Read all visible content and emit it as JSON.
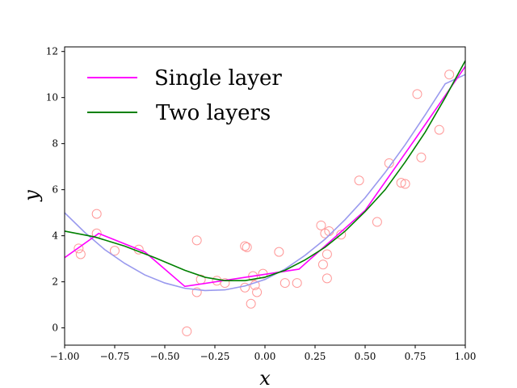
{
  "chart_data": {
    "type": "line",
    "title": "",
    "xlabel": "x",
    "ylabel": "y",
    "xlim": [
      -1.0,
      1.0
    ],
    "ylim": [
      -0.75,
      12.2
    ],
    "x_ticks": [
      -1.0,
      -0.75,
      -0.5,
      -0.25,
      0.0,
      0.25,
      0.5,
      0.75,
      1.0
    ],
    "x_tick_labels": [
      "−1.00",
      "−0.75",
      "−0.50",
      "−0.25",
      "0.00",
      "0.25",
      "0.50",
      "0.75",
      "1.00"
    ],
    "y_ticks": [
      0,
      2,
      4,
      6,
      8,
      10,
      12
    ],
    "y_tick_labels": [
      "0",
      "2",
      "4",
      "6",
      "8",
      "10",
      "12"
    ],
    "grid": false,
    "legend_position": "upper-left",
    "legend": [
      {
        "label": "Single layer",
        "color": "#ff00ff"
      },
      {
        "label": "Two layers",
        "color": "#008000"
      }
    ],
    "scatter": {
      "color": "#ff9999",
      "points": [
        [
          -0.93,
          3.45
        ],
        [
          -0.92,
          3.2
        ],
        [
          -0.84,
          4.1
        ],
        [
          -0.84,
          4.95
        ],
        [
          -0.75,
          3.35
        ],
        [
          -0.63,
          3.4
        ],
        [
          -0.39,
          -0.15
        ],
        [
          -0.34,
          3.8
        ],
        [
          -0.34,
          1.55
        ],
        [
          -0.32,
          2.1
        ],
        [
          -0.24,
          2.05
        ],
        [
          -0.2,
          1.95
        ],
        [
          -0.1,
          3.55
        ],
        [
          -0.09,
          3.5
        ],
        [
          -0.1,
          1.75
        ],
        [
          -0.07,
          1.05
        ],
        [
          -0.06,
          2.25
        ],
        [
          -0.05,
          1.85
        ],
        [
          -0.04,
          1.55
        ],
        [
          -0.01,
          2.35
        ],
        [
          0.07,
          3.3
        ],
        [
          0.1,
          1.95
        ],
        [
          0.16,
          1.95
        ],
        [
          0.28,
          4.45
        ],
        [
          0.3,
          4.1
        ],
        [
          0.29,
          2.75
        ],
        [
          0.31,
          3.2
        ],
        [
          0.32,
          4.2
        ],
        [
          0.31,
          2.15
        ],
        [
          0.38,
          4.05
        ],
        [
          0.47,
          6.4
        ],
        [
          0.56,
          4.6
        ],
        [
          0.62,
          7.15
        ],
        [
          0.68,
          6.3
        ],
        [
          0.7,
          6.25
        ],
        [
          0.76,
          10.15
        ],
        [
          0.78,
          7.4
        ],
        [
          0.87,
          8.6
        ],
        [
          0.92,
          11.0
        ]
      ]
    },
    "series": [
      {
        "name": "Single layer",
        "color": "#ff00ff",
        "x": [
          -1.0,
          -0.83,
          -0.6,
          -0.4,
          0.17,
          0.5,
          0.75,
          1.0
        ],
        "y": [
          3.05,
          4.1,
          3.3,
          1.8,
          2.55,
          5.1,
          8.2,
          11.35
        ]
      },
      {
        "name": "Two layers",
        "color": "#008000",
        "x": [
          -1.0,
          -0.85,
          -0.7,
          -0.55,
          -0.4,
          -0.3,
          -0.2,
          -0.1,
          0.0,
          0.1,
          0.2,
          0.3,
          0.4,
          0.5,
          0.6,
          0.7,
          0.8,
          0.9,
          1.0
        ],
        "y": [
          4.2,
          3.95,
          3.55,
          3.05,
          2.5,
          2.2,
          2.05,
          2.05,
          2.2,
          2.5,
          2.95,
          3.5,
          4.2,
          5.05,
          6.0,
          7.2,
          8.5,
          10.0,
          11.6
        ]
      },
      {
        "color": "#9999ee",
        "x": [
          -1.0,
          -0.9,
          -0.8,
          -0.7,
          -0.6,
          -0.5,
          -0.4,
          -0.3,
          -0.2,
          -0.1,
          0.0,
          0.1,
          0.2,
          0.3,
          0.4,
          0.5,
          0.6,
          0.7,
          0.8,
          0.9,
          1.0
        ],
        "y": [
          5.0,
          4.15,
          3.4,
          2.8,
          2.3,
          1.95,
          1.72,
          1.62,
          1.65,
          1.82,
          2.1,
          2.55,
          3.15,
          3.85,
          4.7,
          5.65,
          6.75,
          7.95,
          9.25,
          10.6,
          11.0
        ]
      }
    ]
  }
}
